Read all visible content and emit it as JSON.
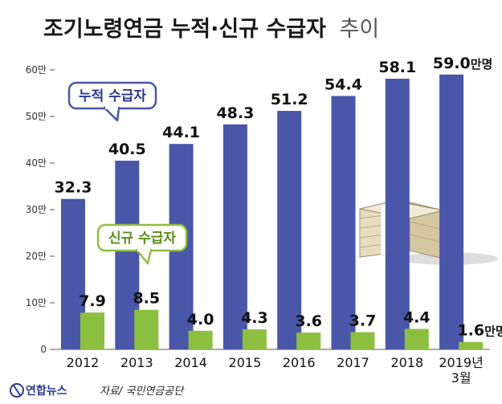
{
  "title_main": "조기노령연금 누적·신규 수급자",
  "title_suffix": "추이",
  "source": "자료/ 국민연금공단",
  "brand": "연합뉴스",
  "value_unit": "만명",
  "legend": {
    "cumulative": "누적 수급자",
    "new": "신규 수급자"
  },
  "colors": {
    "cumulative": "#4a56a8",
    "new": "#8cbf3f",
    "callout_border_cumulative": "#4a56a8",
    "callout_border_new": "#8cbf3f"
  },
  "chart_data": {
    "type": "bar",
    "categories": [
      "2012",
      "2013",
      "2014",
      "2015",
      "2016",
      "2017",
      "2018",
      "2019년 3월"
    ],
    "category_lines": [
      [
        "2012"
      ],
      [
        "2013"
      ],
      [
        "2014"
      ],
      [
        "2015"
      ],
      [
        "2016"
      ],
      [
        "2017"
      ],
      [
        "2018"
      ],
      [
        "2019년",
        "3월"
      ]
    ],
    "series": [
      {
        "name": "누적 수급자",
        "values": [
          32.3,
          40.5,
          44.1,
          48.3,
          51.2,
          54.4,
          58.1,
          59.0
        ]
      },
      {
        "name": "신규 수급자",
        "values": [
          7.9,
          8.5,
          4.0,
          4.3,
          3.6,
          3.7,
          4.4,
          1.6
        ]
      }
    ],
    "yticks": [
      "0",
      "10만",
      "20만",
      "30만",
      "40만",
      "50만",
      "60만"
    ],
    "ylim": [
      0,
      60
    ],
    "grid": false
  }
}
